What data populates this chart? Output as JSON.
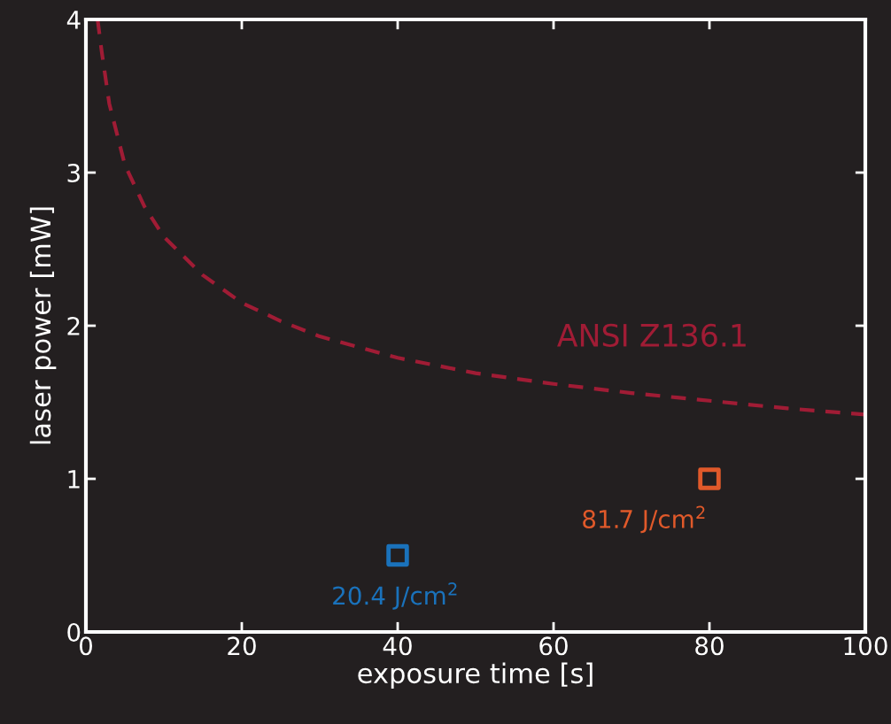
{
  "chart_data": {
    "type": "scatter",
    "xlabel": "exposure time [s]",
    "ylabel": "laser power [mW]",
    "xlim": [
      0,
      100
    ],
    "xticks": [
      0,
      20,
      40,
      60,
      80,
      100
    ],
    "ylim": [
      0,
      4
    ],
    "yticks": [
      0,
      1,
      2,
      3,
      4
    ],
    "grid": false,
    "legend": false,
    "series": [
      {
        "name": "ANSI Z136.1",
        "type": "line",
        "line_style": "dashed",
        "marker": "none",
        "color": "#a01c35",
        "x": [
          1.5,
          2,
          3,
          5,
          7.5,
          10,
          15,
          20,
          25,
          30,
          40,
          50,
          60,
          70,
          80,
          90,
          100
        ],
        "values": [
          4.0,
          3.8,
          3.45,
          3.05,
          2.78,
          2.58,
          2.33,
          2.15,
          2.03,
          1.93,
          1.79,
          1.69,
          1.62,
          1.56,
          1.51,
          1.46,
          1.42
        ]
      },
      {
        "marker": "square",
        "color": "#1a72bb",
        "x": [
          40
        ],
        "values": [
          0.5
        ]
      },
      {
        "marker": "square",
        "color": "#e0592a",
        "x": [
          80
        ],
        "values": [
          1.0
        ]
      }
    ],
    "annotations": [
      {
        "text": "20.4 J/cm$^{2}$",
        "x": 40,
        "y": 0.5
      },
      {
        "text": "81.7 J/cm$^{2}$",
        "x": 80,
        "y": 1.0
      }
    ]
  }
}
